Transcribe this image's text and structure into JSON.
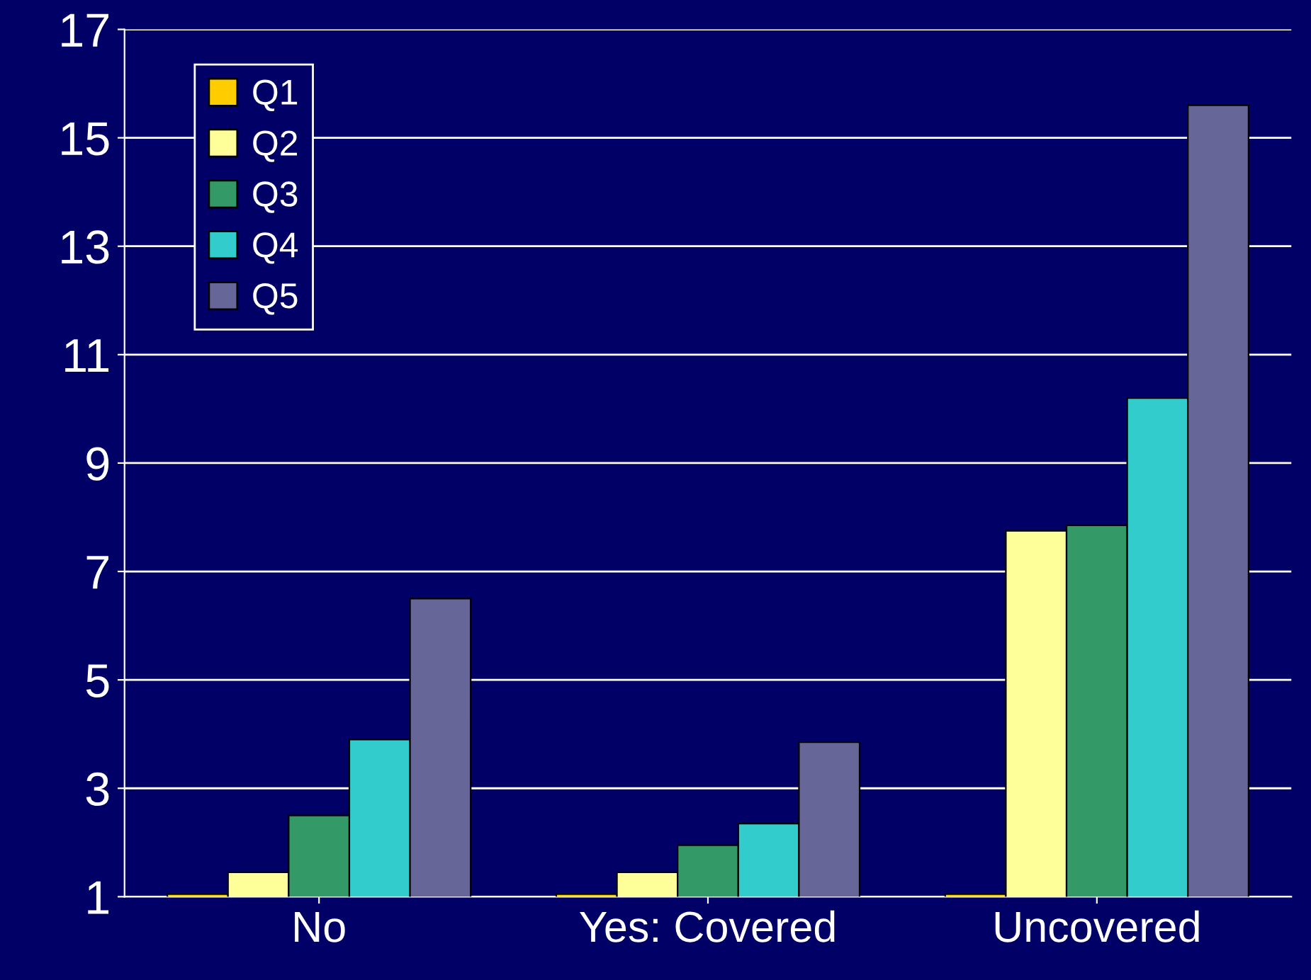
{
  "chart_data": {
    "type": "bar",
    "categories": [
      "No",
      "Yes: Covered",
      "Uncovered"
    ],
    "series": [
      {
        "name": "Q1",
        "color": "#ffcc00",
        "values": [
          1.05,
          1.05,
          1.05
        ]
      },
      {
        "name": "Q2",
        "color": "#ffff99",
        "values": [
          1.45,
          1.45,
          7.75
        ]
      },
      {
        "name": "Q3",
        "color": "#339966",
        "values": [
          2.5,
          1.95,
          7.85
        ]
      },
      {
        "name": "Q4",
        "color": "#33cccc",
        "values": [
          3.9,
          2.35,
          10.2
        ]
      },
      {
        "name": "Q5",
        "color": "#666699",
        "values": [
          6.5,
          3.85,
          15.6
        ]
      }
    ],
    "ylim": [
      1,
      17
    ],
    "yticks": [
      1,
      3,
      5,
      7,
      9,
      11,
      13,
      15,
      17
    ],
    "grid": "y",
    "legend": "top left"
  }
}
